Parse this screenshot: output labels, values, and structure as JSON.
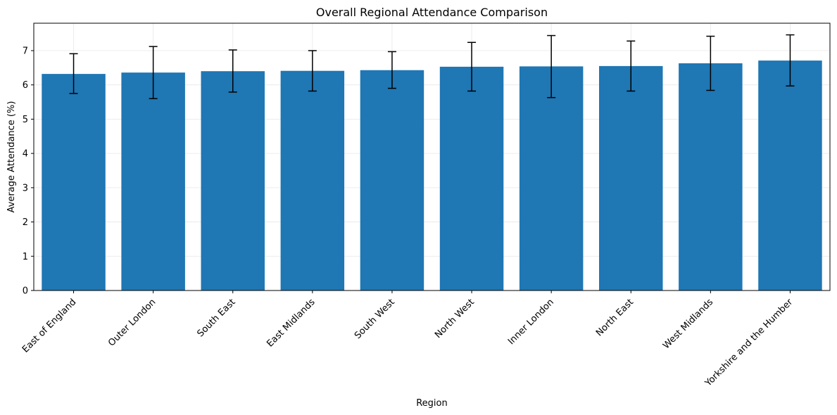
{
  "chart_data": {
    "type": "bar",
    "title": "Overall Regional Attendance Comparison",
    "xlabel": "Region",
    "ylabel": "Average Attendance (%)",
    "ylim": [
      0,
      7.8
    ],
    "yticks": [
      0,
      1,
      2,
      3,
      4,
      5,
      6,
      7
    ],
    "grid": true,
    "categories": [
      "East of England",
      "Outer London",
      "South East",
      "East Midlands",
      "South West",
      "North West",
      "Inner London",
      "North East",
      "West Midlands",
      "Yorkshire and the Humber"
    ],
    "values": [
      6.32,
      6.36,
      6.4,
      6.41,
      6.43,
      6.53,
      6.54,
      6.55,
      6.63,
      6.71
    ],
    "error_low": [
      5.75,
      5.6,
      5.79,
      5.82,
      5.9,
      5.82,
      5.63,
      5.82,
      5.84,
      5.97
    ],
    "error_high": [
      6.91,
      7.12,
      7.02,
      7.0,
      6.97,
      7.24,
      7.44,
      7.28,
      7.42,
      7.46
    ],
    "bar_color": "#1f77b4"
  }
}
